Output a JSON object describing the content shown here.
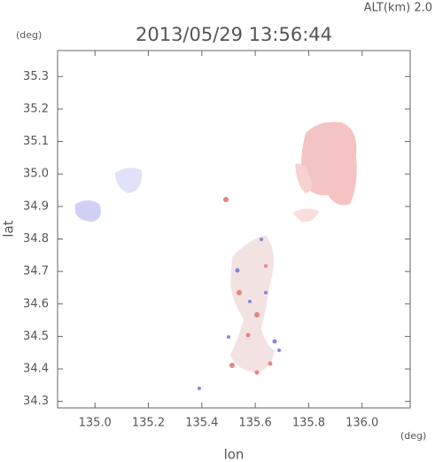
{
  "chart_data": {
    "type": "map",
    "title": "2013/05/29 13:56:44",
    "subtitle": "ALT(km) 2.0",
    "x_label": "lon",
    "y_label": "lat",
    "x_unit": "(deg)",
    "y_unit": "(deg)",
    "xlim": [
      134.86,
      136.18
    ],
    "ylim": [
      34.28,
      35.38
    ],
    "xticks": [
      {
        "value": 135.0,
        "label": "135.0"
      },
      135.2,
      135.4,
      135.6,
      135.8,
      {
        "value": 136.0,
        "label": "136.0"
      }
    ],
    "yticks": [
      34.3,
      34.4,
      34.5,
      34.6,
      34.7,
      34.8,
      34.9,
      {
        "value": 35.0,
        "label": "35.0"
      },
      35.1,
      35.2,
      35.3
    ]
  }
}
